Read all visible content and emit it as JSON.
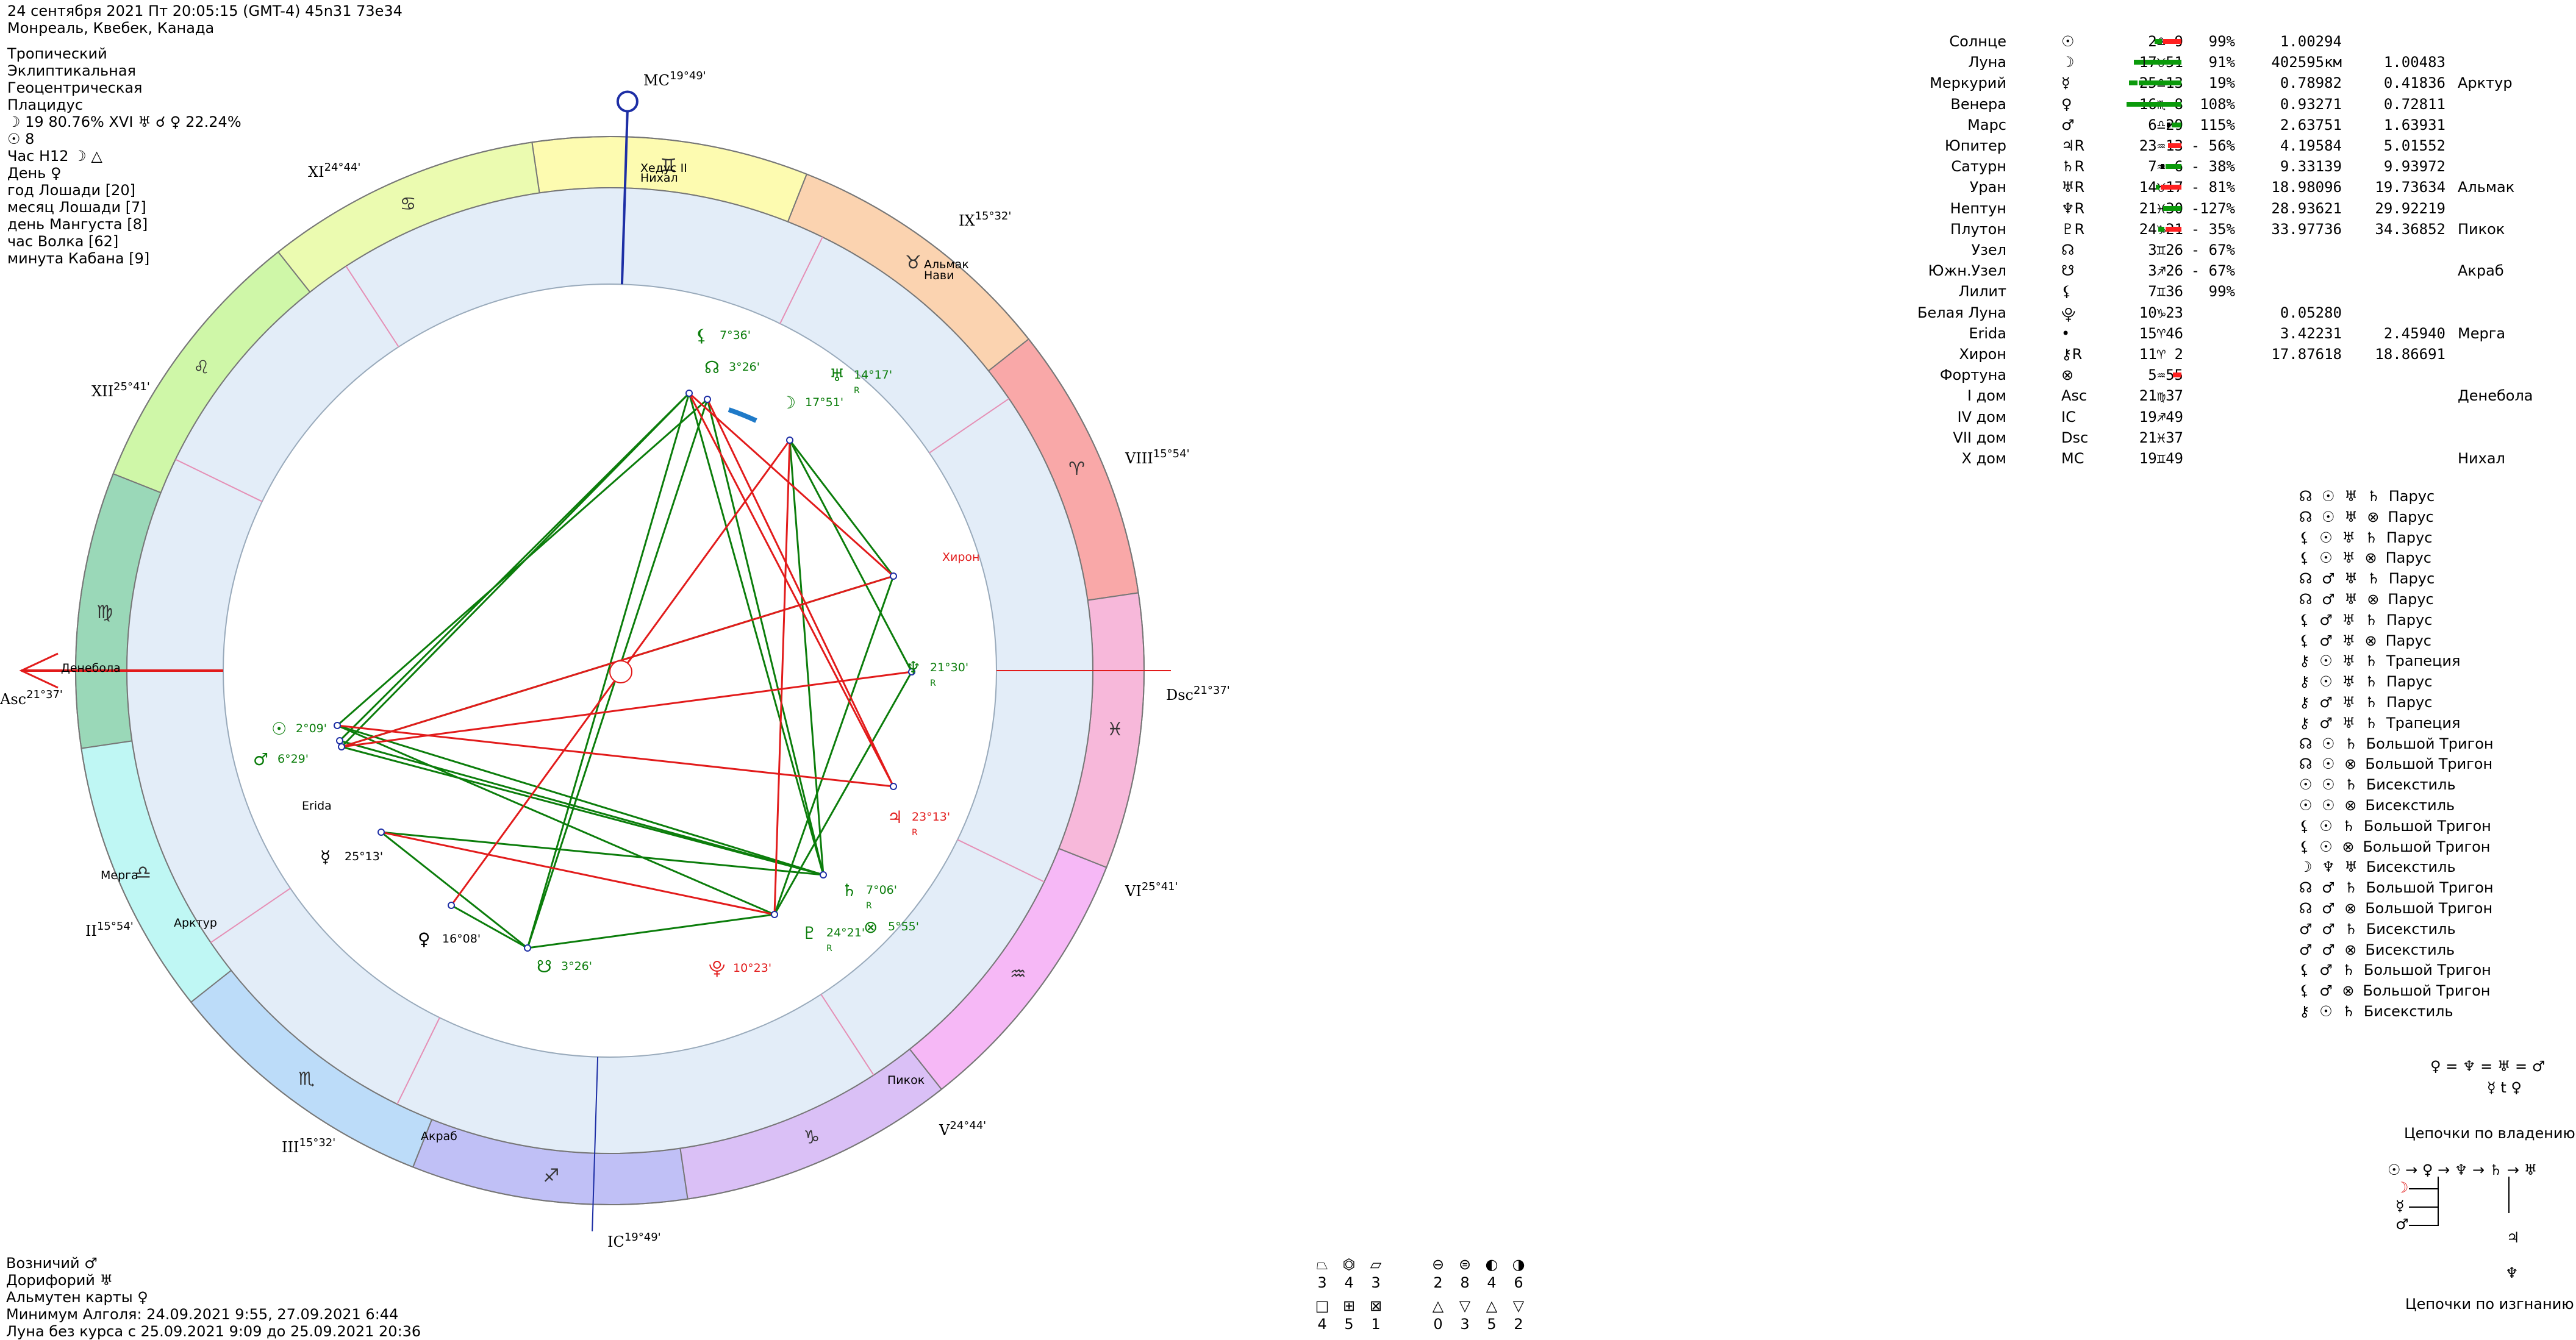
{
  "header": {
    "line1": "24 сентября 2021  Пт  20:05:15 (GMT-4) 45n31  73e34",
    "line2": "Монреаль, Квебек, Канада"
  },
  "settings": [
    "Тропический",
    "Эклиптикальная",
    "Геоцентрическая",
    "Плацидус",
    "☽ 19 80.76% XVI  ♅ ☌ ♀ 22.24%",
    "☉ 8",
    "Час H12  ☽ △",
    "День  ♀",
    "год Лошади [20]",
    "месяц Лошади [7]",
    "день Мангуста [8]",
    "час Волка [62]",
    "минута Кабана [9]"
  ],
  "footer": [
    "Возничий  ♂",
    "Дорифорий  ♅",
    "Альмутен карты  ♀",
    "Минимум Алголя: 24.09.2021  9:55,  27.09.2021  6:44",
    "Луна без курса с 25.09.2021  9:09 до 25.09.2021 20:36"
  ],
  "houses": [
    {
      "label": "MC",
      "deg": "19°49'"
    },
    {
      "label": "XI",
      "deg": "24°44'"
    },
    {
      "label": "XII",
      "deg": "25°41'"
    },
    {
      "label": "Asc",
      "deg": "21°37'"
    },
    {
      "label": "II",
      "deg": "15°54'"
    },
    {
      "label": "III",
      "deg": "15°32'"
    },
    {
      "label": "IC",
      "deg": "19°49'"
    },
    {
      "label": "V",
      "deg": "24°44'"
    },
    {
      "label": "VI",
      "deg": "25°41'"
    },
    {
      "label": "Dsc",
      "deg": "21°37'"
    },
    {
      "label": "VIII",
      "deg": "15°54'"
    },
    {
      "label": "IX",
      "deg": "15°32'"
    }
  ],
  "stars_on_wheel": [
    "Хедус II",
    "Нихал",
    "Альмак",
    "Нави",
    "Хирон",
    "Денебола",
    "Erida",
    "Мерга",
    "Арктур",
    "Акраб",
    "Пикок"
  ],
  "planets_on_wheel": [
    {
      "glyph": "☊",
      "deg": "3°26'"
    },
    {
      "glyph": "⚸",
      "deg": "7°36'"
    },
    {
      "glyph": "♅",
      "deg": "14°17'",
      "r": "R"
    },
    {
      "glyph": "☽",
      "deg": "17°51'"
    },
    {
      "glyph": "♆",
      "deg": "21°30'",
      "r": "R"
    },
    {
      "glyph": "♃",
      "deg": "23°13'",
      "r": "R"
    },
    {
      "glyph": "♄",
      "deg": "7°06'",
      "r": "R"
    },
    {
      "glyph": "⊗",
      "deg": "5°55'"
    },
    {
      "glyph": "♇",
      "deg": "24°21'",
      "r": "R"
    },
    {
      "glyph": "⯓",
      "deg": "10°23'"
    },
    {
      "glyph": "☋",
      "deg": "3°26'"
    },
    {
      "glyph": "♀",
      "deg": "16°08'"
    },
    {
      "glyph": "☿",
      "deg": "25°13'"
    },
    {
      "glyph": "☉",
      "deg": "2°09'"
    },
    {
      "glyph": "♂",
      "deg": "6°29'"
    }
  ],
  "planets_table": [
    {
      "name": "Солнце",
      "glyph": "☉",
      "pos": "2♎ 9",
      "pct": "99%",
      "d1": "1.00294",
      "d2": "",
      "star": ""
    },
    {
      "name": "Луна",
      "glyph": "☽",
      "pos": "17♉51",
      "pct": "91%",
      "d1": "402595км",
      "d2": "1.00483",
      "star": ""
    },
    {
      "name": "Меркурий",
      "glyph": "☿",
      "pos": "25♎13",
      "pct": "19%",
      "d1": "0.78982",
      "d2": "0.41836",
      "star": "Арктур"
    },
    {
      "name": "Венера",
      "glyph": "♀",
      "pos": "16♏ 8",
      "pct": "108%",
      "d1": "0.93271",
      "d2": "0.72811",
      "star": ""
    },
    {
      "name": "Марс",
      "glyph": "♂",
      "pos": "6♎29",
      "pct": "115%",
      "d1": "2.63751",
      "d2": "1.63931",
      "star": ""
    },
    {
      "name": "Юпитер",
      "glyph": "♃R",
      "pos": "23♒13",
      "pct": "- 56%",
      "d1": "4.19584",
      "d2": "5.01552",
      "star": ""
    },
    {
      "name": "Сатурн",
      "glyph": "♄R",
      "pos": "7♒ 6",
      "pct": "- 38%",
      "d1": "9.33139",
      "d2": "9.93972",
      "star": ""
    },
    {
      "name": "Уран",
      "glyph": "♅R",
      "pos": "14♉17",
      "pct": "- 81%",
      "d1": "18.98096",
      "d2": "19.73634",
      "star": "Альмак"
    },
    {
      "name": "Нептун",
      "glyph": "♆R",
      "pos": "21♓30",
      "pct": "-127%",
      "d1": "28.93621",
      "d2": "29.92219",
      "star": ""
    },
    {
      "name": "Плутон",
      "glyph": "♇R",
      "pos": "24♑21",
      "pct": "- 35%",
      "d1": "33.97736",
      "d2": "34.36852",
      "star": "Пикок"
    },
    {
      "name": "Узел",
      "glyph": "☊",
      "pos": "3♊26",
      "pct": "- 67%",
      "d1": "",
      "d2": "",
      "star": ""
    },
    {
      "name": "Южн.Узел",
      "glyph": "☋",
      "pos": "3♐26",
      "pct": "- 67%",
      "d1": "",
      "d2": "",
      "star": "Акраб"
    },
    {
      "name": "Лилит",
      "glyph": "⚸",
      "pos": "7♊36",
      "pct": "99%",
      "d1": "",
      "d2": "",
      "star": ""
    },
    {
      "name": "Белая Луна",
      "glyph": "⯓",
      "pos": "10♑23",
      "pct": "",
      "d1": "0.05280",
      "d2": "",
      "star": ""
    },
    {
      "name": "Erida",
      "glyph": "•",
      "pos": "15♈46",
      "pct": "",
      "d1": "3.42231",
      "d2": "2.45940",
      "star": "Мерга"
    },
    {
      "name": "Хирон",
      "glyph": "⚷R",
      "pos": "11♈ 2",
      "pct": "",
      "d1": "17.87618",
      "d2": "18.86691",
      "star": ""
    },
    {
      "name": "Фортуна",
      "glyph": "⊗",
      "pos": "5♒55",
      "pct": "",
      "d1": "",
      "d2": "",
      "star": ""
    },
    {
      "name": "I дом",
      "glyph": "Asc",
      "pos": "21♍37",
      "pct": "",
      "d1": "",
      "d2": "",
      "star": "Денебола"
    },
    {
      "name": "IV дом",
      "glyph": "IC",
      "pos": "19♐49",
      "pct": "",
      "d1": "",
      "d2": "",
      "star": ""
    },
    {
      "name": "VII дом",
      "glyph": "Dsc",
      "pos": "21♓37",
      "pct": "",
      "d1": "",
      "d2": "",
      "star": ""
    },
    {
      "name": "X дом",
      "glyph": "MC",
      "pos": "19♊49",
      "pct": "",
      "d1": "",
      "d2": "",
      "star": "Нихал"
    }
  ],
  "aspect_figures": [
    {
      "g": "☊ ☉ ♅ ♄",
      "name": "Парус"
    },
    {
      "g": "☊ ☉ ♅ ⊗",
      "name": "Парус"
    },
    {
      "g": "⚸ ☉ ♅ ♄",
      "name": "Парус"
    },
    {
      "g": "⚸ ☉ ♅ ⊗",
      "name": "Парус"
    },
    {
      "g": "☊ ♂ ♅ ♄",
      "name": "Парус"
    },
    {
      "g": "☊ ♂ ♅ ⊗",
      "name": "Парус"
    },
    {
      "g": "⚸ ♂ ♅ ♄",
      "name": "Парус"
    },
    {
      "g": "⚸ ♂ ♅ ⊗",
      "name": "Парус"
    },
    {
      "g": "⚷ ☉ ♅ ♄",
      "name": "Трапеция"
    },
    {
      "g": "⚷ ☉ ♅ ♄",
      "name": "Парус"
    },
    {
      "g": "⚷ ♂ ♅ ♄",
      "name": "Парус"
    },
    {
      "g": "⚷ ♂ ♅ ♄",
      "name": "Трапеция"
    },
    {
      "g": "☊ ☉ ♄",
      "name": "Большой Тригон"
    },
    {
      "g": "☊ ☉ ⊗",
      "name": "Большой Тригон"
    },
    {
      "g": "☉ ☉ ♄",
      "name": "Бисекстиль"
    },
    {
      "g": "☉ ☉ ⊗",
      "name": "Бисекстиль"
    },
    {
      "g": "⚸ ☉ ♄",
      "name": "Большой Тригон"
    },
    {
      "g": "⚸ ☉ ⊗",
      "name": "Большой Тригон"
    },
    {
      "g": "☽ ♆ ♅",
      "name": "Бисекстиль"
    },
    {
      "g": "☊ ♂ ♄",
      "name": "Большой Тригон"
    },
    {
      "g": "☊ ♂ ⊗",
      "name": "Большой Тригон"
    },
    {
      "g": "♂ ♂ ♄",
      "name": "Бисекстиль"
    },
    {
      "g": "♂ ♂ ⊗",
      "name": "Бисекстиль"
    },
    {
      "g": "⚸ ♂ ♄",
      "name": "Большой Тригон"
    },
    {
      "g": "⚸ ♂ ⊗",
      "name": "Большой Тригон"
    },
    {
      "g": "⚷ ☉ ♄",
      "name": "Бисекстиль"
    }
  ],
  "equal_line": "♀ = ♆ = ♅ = ♂",
  "equal_line2": "☿ t ♀",
  "chains_own_title": "Цепочки по владению",
  "chains_own_line": "☉ → ♀ → ♆ → ♄ → ♅",
  "chains_exile_title": "Цепочки по изгнанию",
  "stats": {
    "row1_glyphs": [
      "⏢",
      "⏣",
      "⏥",
      "⊖",
      "⊜",
      "◐",
      "◑"
    ],
    "row1_vals": [
      "3",
      "4",
      "3",
      "2",
      "8",
      "4",
      "6"
    ],
    "row2_glyphs": [
      "□",
      "⊞",
      "⊠",
      "△",
      "▽",
      "△",
      "▽"
    ],
    "row2_vals": [
      "4",
      "5",
      "1",
      "0",
      "3",
      "5",
      "2"
    ]
  },
  "colors": {
    "aries": "#f9a8a8",
    "taurus": "#fbd3b0",
    "gemini": "#fdfbb0",
    "cancer": "#ebfbb0",
    "leo": "#cff7a8",
    "virgo": "#9ad8b8",
    "libra": "#bff7f4",
    "scorpio": "#bcdcf9",
    "sagittarius": "#c0c0f6",
    "capricorn": "#dac0f6",
    "aquarius": "#f6b8f6",
    "pisces": "#f7b8da",
    "house_ring": "#e3edf8",
    "green": "#0b7d0b",
    "red": "#e21b1b",
    "blue": "#1d2ea5"
  }
}
